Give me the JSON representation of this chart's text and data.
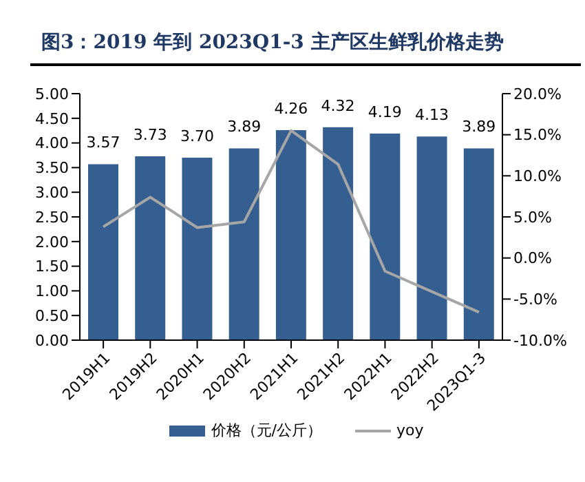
{
  "chart_data": {
    "type": "bar",
    "title": "图3：2019 年到 2023Q1-3 主产区生鲜乳价格走势",
    "categories": [
      "2019H1",
      "2019H2",
      "2020H1",
      "2020H2",
      "2021H1",
      "2021H2",
      "2022H1",
      "2022H2",
      "2023Q1-3"
    ],
    "series": [
      {
        "name": "价格（元/公斤）",
        "color": "#365f91",
        "values": [
          3.57,
          3.73,
          3.7,
          3.89,
          4.26,
          4.32,
          4.19,
          4.13,
          3.89
        ],
        "value_labels": [
          "3.57",
          "3.73",
          "3.70",
          "3.89",
          "4.26",
          "4.32",
          "4.19",
          "4.13",
          "3.89"
        ]
      },
      {
        "name": "yoy",
        "type": "line",
        "axis": "y2",
        "color": "#a6a6a6",
        "values": [
          3.8,
          7.4,
          3.7,
          4.4,
          15.5,
          11.4,
          -1.6,
          -4.1,
          -6.6
        ]
      }
    ],
    "ylim": [
      0,
      5
    ],
    "yticks": [
      {
        "value": 0,
        "label": "0.00"
      },
      {
        "value": 0.5,
        "label": "0.50"
      },
      {
        "value": 1,
        "label": "1.00"
      },
      {
        "value": 1.5,
        "label": "1.50"
      },
      {
        "value": 2,
        "label": "2.00"
      },
      {
        "value": 2.5,
        "label": "2.50"
      },
      {
        "value": 3,
        "label": "3.00"
      },
      {
        "value": 3.5,
        "label": "3.50"
      },
      {
        "value": 4,
        "label": "4.00"
      },
      {
        "value": 4.5,
        "label": "4.50"
      },
      {
        "value": 5,
        "label": "5.00"
      }
    ],
    "y2lim": [
      -10,
      20
    ],
    "y2ticks": [
      {
        "value": -10,
        "label": "-10.0%"
      },
      {
        "value": -5,
        "label": "-5.0%"
      },
      {
        "value": 0,
        "label": "0.0%"
      },
      {
        "value": 5,
        "label": "5.0%"
      },
      {
        "value": 10,
        "label": "10.0%"
      },
      {
        "value": 15,
        "label": "15.0%"
      },
      {
        "value": 20,
        "label": "20.0%"
      }
    ],
    "grid": false,
    "legend": "bottom",
    "marker": "none"
  }
}
